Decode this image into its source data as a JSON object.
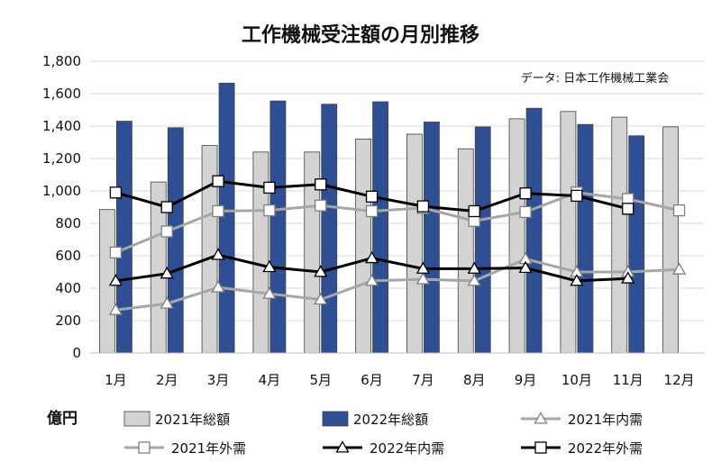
{
  "chart_data": {
    "type": "bar",
    "title": "工作機械受注額の月別推移",
    "source_note": "データ: 日本工作機械工業会",
    "unit_label": "億円",
    "categories": [
      "1月",
      "2月",
      "3月",
      "4月",
      "5月",
      "6月",
      "7月",
      "8月",
      "9月",
      "10月",
      "11月",
      "12月"
    ],
    "ylim": [
      0,
      1800
    ],
    "yticks": [
      0,
      200,
      400,
      600,
      800,
      1000,
      1200,
      1400,
      1600,
      1800
    ],
    "ytick_labels": [
      "0",
      "200",
      "400",
      "600",
      "800",
      "1,000",
      "1,200",
      "1,400",
      "1,600",
      "1,800"
    ],
    "grid": true,
    "bar_series": [
      {
        "name": "2021年総額",
        "color": "#d3d3d3",
        "values": [
          885,
          1055,
          1280,
          1240,
          1240,
          1320,
          1350,
          1260,
          1445,
          1490,
          1455,
          1395
        ]
      },
      {
        "name": "2022年総額",
        "color": "#2e4f94",
        "values": [
          1430,
          1390,
          1665,
          1555,
          1535,
          1550,
          1425,
          1395,
          1510,
          1410,
          1340,
          null
        ]
      }
    ],
    "line_series": [
      {
        "name": "2021年内需",
        "color": "#a6a6a6",
        "marker": "triangle",
        "values": [
          265,
          305,
          405,
          365,
          330,
          445,
          455,
          445,
          580,
          500,
          500,
          515
        ]
      },
      {
        "name": "2021年外需",
        "color": "#a6a6a6",
        "marker": "square",
        "values": [
          620,
          750,
          875,
          880,
          910,
          875,
          895,
          815,
          870,
          990,
          950,
          880
        ]
      },
      {
        "name": "2022年内需",
        "color": "#000000",
        "marker": "triangle",
        "values": [
          445,
          490,
          605,
          530,
          500,
          585,
          520,
          520,
          525,
          445,
          460,
          null
        ]
      },
      {
        "name": "2022年外需",
        "color": "#000000",
        "marker": "square",
        "values": [
          990,
          900,
          1060,
          1020,
          1040,
          965,
          905,
          875,
          985,
          970,
          890,
          null
        ]
      }
    ],
    "legend": {
      "placement": "bottom",
      "order": [
        "2021年総額",
        "2022年総額",
        "2021年内需",
        "2021年外需",
        "2022年内需",
        "2022年外需"
      ]
    }
  }
}
